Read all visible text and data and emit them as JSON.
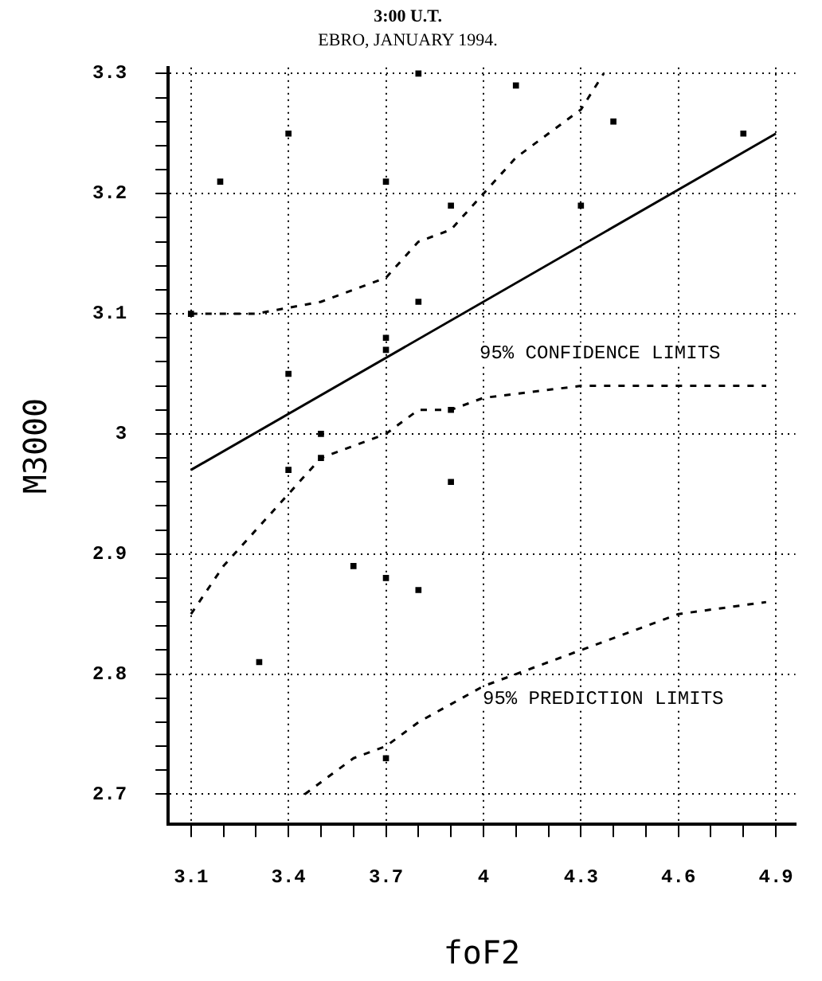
{
  "chart_data": {
    "type": "scatter",
    "title": "3:00 U.T.",
    "subtitle": "EBRO, JANUARY 1994.",
    "xlabel": "foF2",
    "ylabel": "M3000",
    "xlim": [
      3.03,
      4.96
    ],
    "ylim": [
      2.675,
      3.305
    ],
    "xticks": [
      3.1,
      {
        "value": 3.2,
        "label": null
      },
      {
        "value": 3.3,
        "label": null
      },
      3.4,
      {
        "value": 3.5,
        "label": null
      },
      {
        "value": 3.6,
        "label": null
      },
      3.7,
      {
        "value": 3.8,
        "label": null
      },
      {
        "value": 3.9,
        "label": null
      },
      4,
      {
        "value": 4.1,
        "label": null
      },
      {
        "value": 4.2,
        "label": null
      },
      4.3,
      {
        "value": 4.4,
        "label": null
      },
      {
        "value": 4.5,
        "label": null
      },
      4.6,
      {
        "value": 4.7,
        "label": null
      },
      {
        "value": 4.8,
        "label": null
      },
      4.9
    ],
    "yticks": [
      2.7,
      {
        "value": 2.72,
        "label": null
      },
      {
        "value": 2.74,
        "label": null
      },
      {
        "value": 2.76,
        "label": null
      },
      {
        "value": 2.78,
        "label": null
      },
      2.8,
      {
        "value": 2.82,
        "label": null
      },
      {
        "value": 2.84,
        "label": null
      },
      {
        "value": 2.86,
        "label": null
      },
      {
        "value": 2.88,
        "label": null
      },
      2.9,
      {
        "value": 2.92,
        "label": null
      },
      {
        "value": 2.94,
        "label": null
      },
      {
        "value": 2.96,
        "label": null
      },
      {
        "value": 2.98,
        "label": null
      },
      3,
      {
        "value": 3.02,
        "label": null
      },
      {
        "value": 3.04,
        "label": null
      },
      {
        "value": 3.06,
        "label": null
      },
      {
        "value": 3.08,
        "label": null
      },
      3.1,
      {
        "value": 3.12,
        "label": null
      },
      {
        "value": 3.14,
        "label": null
      },
      {
        "value": 3.16,
        "label": null
      },
      {
        "value": 3.18,
        "label": null
      },
      3.2,
      {
        "value": 3.22,
        "label": null
      },
      {
        "value": 3.24,
        "label": null
      },
      {
        "value": 3.26,
        "label": null
      },
      {
        "value": 3.28,
        "label": null
      },
      3.3
    ],
    "grid": true,
    "legend": false,
    "series": [
      {
        "type": "scatter",
        "marker": "square",
        "color": "#000000",
        "x": [
          3.1,
          3.19,
          3.31,
          3.4,
          3.4,
          3.4,
          3.5,
          3.5,
          3.6,
          3.7,
          3.7,
          3.7,
          3.7,
          3.7,
          3.8,
          3.8,
          3.8,
          3.9,
          3.9,
          3.9,
          4.1,
          4.4,
          4.3,
          4.8
        ],
        "values": [
          3.1,
          3.21,
          2.81,
          3.25,
          3.05,
          2.97,
          3.0,
          2.98,
          2.89,
          3.21,
          3.08,
          3.07,
          2.88,
          2.73,
          3.3,
          3.11,
          2.87,
          3.19,
          2.96,
          3.02,
          3.29,
          3.26,
          3.19,
          3.25
        ]
      },
      {
        "type": "line",
        "marker": "none",
        "line_style": "solid",
        "color": "#000000",
        "x": [
          3.1,
          4.9
        ],
        "values": [
          2.97,
          3.25
        ]
      },
      {
        "type": "line",
        "marker": "none",
        "line_style": "dashed",
        "color": "#000000",
        "x": [
          3.1,
          3.3,
          3.5,
          3.7,
          3.8,
          3.9,
          4.0,
          4.1,
          4.2,
          4.3,
          4.37
        ],
        "values": [
          3.1,
          3.1,
          3.11,
          3.13,
          3.16,
          3.17,
          3.2,
          3.23,
          3.25,
          3.27,
          3.3
        ]
      },
      {
        "type": "line",
        "marker": "none",
        "line_style": "dashed",
        "color": "#000000",
        "x": [
          3.1,
          3.2,
          3.3,
          3.4,
          3.5,
          3.7,
          3.8,
          3.9,
          4.0,
          4.3,
          4.6,
          4.87
        ],
        "values": [
          2.85,
          2.89,
          2.92,
          2.95,
          2.98,
          3.0,
          3.02,
          3.02,
          3.03,
          3.04,
          3.04,
          3.04
        ]
      },
      {
        "type": "line",
        "marker": "none",
        "line_style": "dashed",
        "color": "#000000",
        "x": [
          3.45,
          3.6,
          3.7,
          3.8,
          4.0,
          4.1,
          4.3,
          4.6,
          4.87
        ],
        "values": [
          2.7,
          2.73,
          2.74,
          2.76,
          2.79,
          2.8,
          2.82,
          2.85,
          2.86
        ]
      }
    ],
    "annotations": [
      "95% CONFIDENCE LIMITS",
      "95% PREDICTION LIMITS"
    ]
  }
}
